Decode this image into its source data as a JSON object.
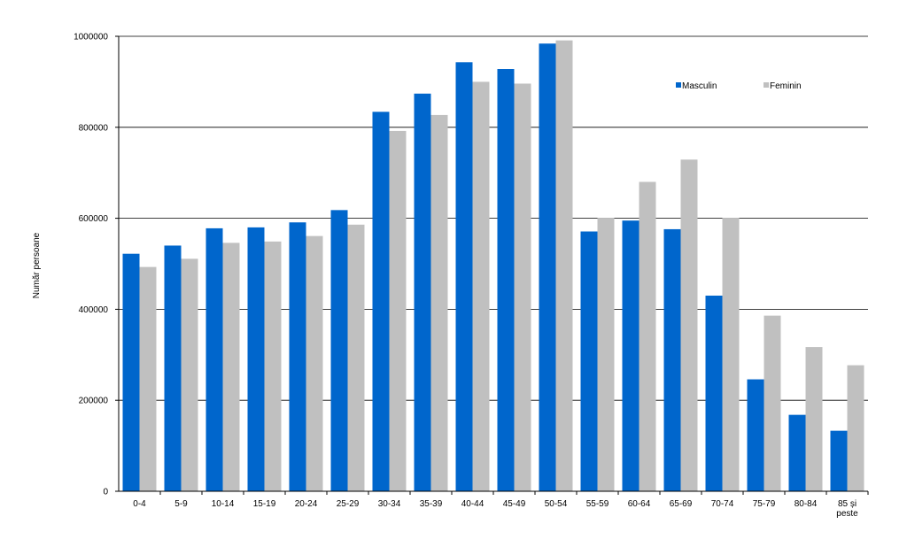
{
  "chart_data": {
    "type": "bar",
    "title": "",
    "xlabel": "",
    "ylabel": "Număr persoane",
    "ylim": [
      0,
      1000000
    ],
    "yticks": [
      0,
      200000,
      400000,
      600000,
      800000,
      1000000
    ],
    "ytick_labels": [
      "0",
      "200000",
      "400000",
      "600000",
      "800000",
      "1000000"
    ],
    "grid": true,
    "legend_position": "top-right",
    "categories": [
      "0-4",
      "5-9",
      "10-14",
      "15-19",
      "20-24",
      "25-29",
      "30-34",
      "35-39",
      "40-44",
      "45-49",
      "50-54",
      "55-59",
      "60-64",
      "65-69",
      "70-74",
      "75-79",
      "80-84",
      "85 și peste"
    ],
    "series": [
      {
        "name": "Masculin",
        "color": "#0066cc",
        "values": [
          522000,
          540000,
          578000,
          580000,
          591000,
          618000,
          834000,
          874000,
          943000,
          928000,
          984000,
          571000,
          595000,
          576000,
          430000,
          246000,
          168000,
          133000
        ]
      },
      {
        "name": "Feminin",
        "color": "#c0c0c0",
        "values": [
          493000,
          511000,
          546000,
          549000,
          561000,
          586000,
          792000,
          827000,
          900000,
          896000,
          991000,
          601000,
          680000,
          729000,
          601000,
          386000,
          317000,
          277000
        ]
      }
    ]
  }
}
